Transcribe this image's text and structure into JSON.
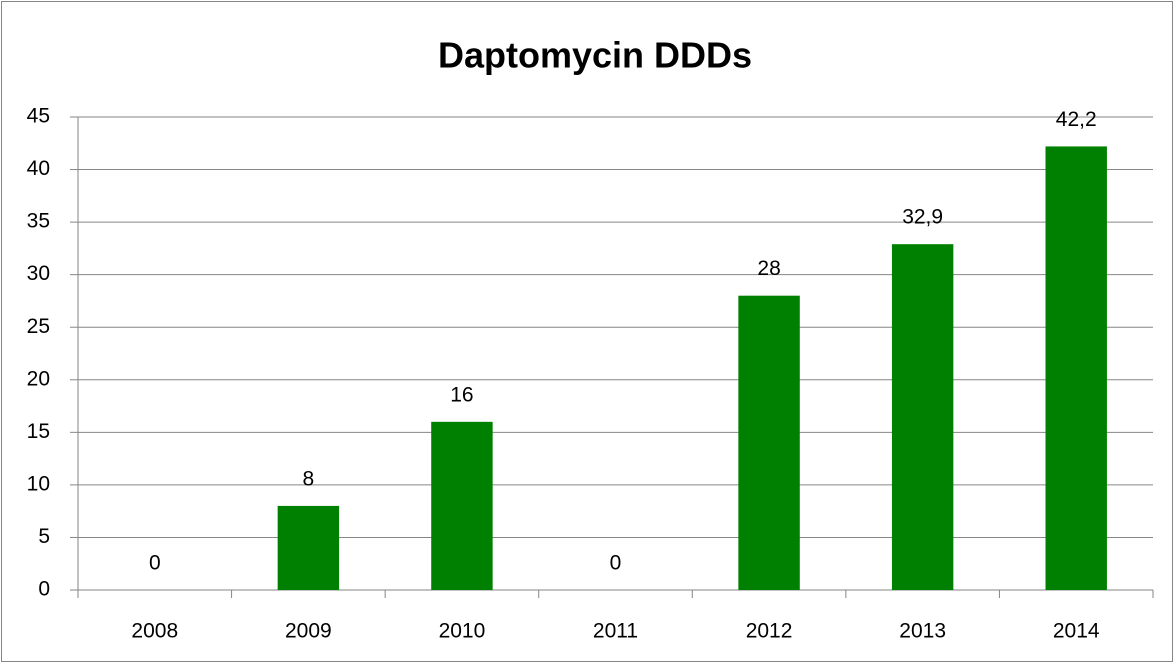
{
  "chart_data": {
    "type": "bar",
    "title": "Daptomycin DDDs",
    "categories": [
      "2008",
      "2009",
      "2010",
      "2011",
      "2012",
      "2013",
      "2014"
    ],
    "values": [
      0,
      8,
      16,
      0,
      28,
      32.9,
      42.2
    ],
    "value_labels": [
      "0",
      "8",
      "16",
      "0",
      "28",
      "32,9",
      "42,2"
    ],
    "color": "#008000",
    "ylim": [
      0,
      45
    ],
    "yticks": [
      0,
      5,
      10,
      15,
      20,
      25,
      30,
      35,
      40,
      45
    ],
    "grid": true
  }
}
